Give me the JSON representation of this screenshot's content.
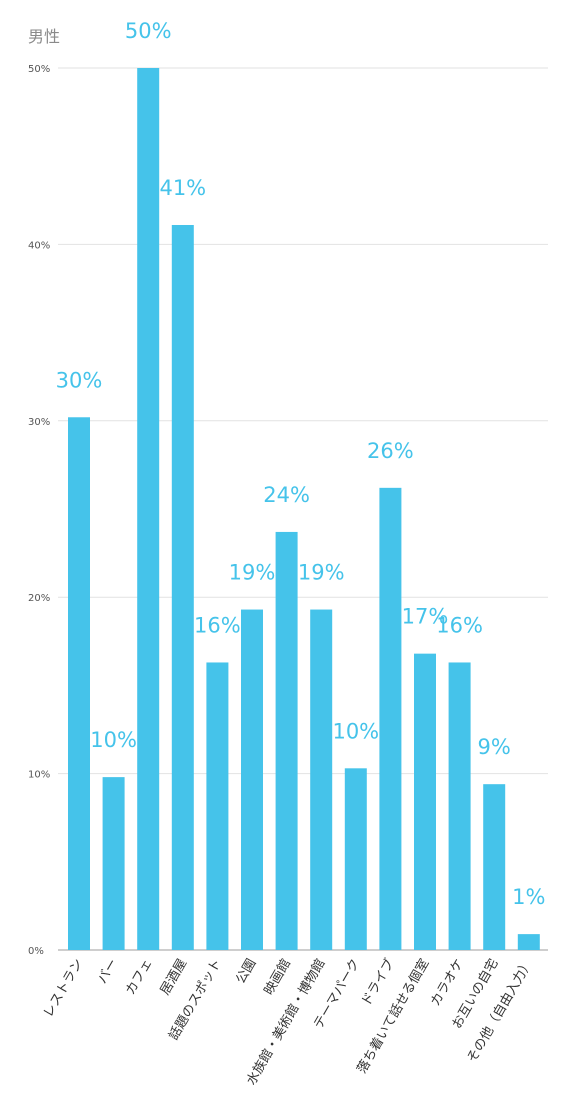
{
  "chart_data": {
    "type": "bar",
    "title": "男性",
    "bar_color": "#45c3ea",
    "label_color": "#45c3ea",
    "ylim": [
      0,
      50
    ],
    "yticks": [
      0,
      10,
      20,
      30,
      40,
      50
    ],
    "ytick_labels": [
      "0%",
      "10%",
      "20%",
      "30%",
      "40%",
      "50%"
    ],
    "grid": true,
    "categories": [
      "レストラン",
      "バー",
      "カフェ",
      "居酒屋",
      "話題のスポット",
      "公園",
      "映画館",
      "水族館・美術館・博物館",
      "テーマパーク",
      "ドライブ",
      "落ち着いて話せる個室",
      "カラオケ",
      "お互いの自宅",
      "その他（自由入力）"
    ],
    "values": [
      30.2,
      9.8,
      50,
      41.1,
      16.3,
      19.3,
      23.7,
      19.3,
      10.3,
      26.2,
      16.8,
      16.3,
      9.4,
      0.9
    ],
    "data_labels": [
      "30%",
      "10%",
      "50%",
      "41%",
      "16%",
      "19%",
      "24%",
      "19%",
      "10%",
      "26%",
      "17%",
      "16%",
      "9%",
      "1%"
    ]
  }
}
